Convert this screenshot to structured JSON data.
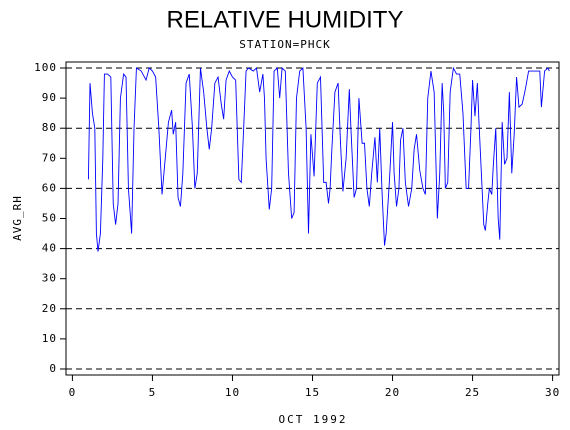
{
  "chart_data": {
    "type": "line",
    "title": "RELATIVE HUMIDITY",
    "subtitle": "STATION=PHCK",
    "x_label": "OCT 1992",
    "y_label": "AVG_RH",
    "xlim": [
      -0.4,
      30.4
    ],
    "ylim": [
      -2,
      102
    ],
    "xticks": [
      0,
      5,
      10,
      15,
      20,
      25,
      30
    ],
    "yticks": [
      0,
      10,
      20,
      30,
      40,
      50,
      60,
      70,
      80,
      90,
      100
    ],
    "ygrid": [
      0,
      20,
      40,
      60,
      80,
      100
    ],
    "series": [
      {
        "color": "#0000ff",
        "x": [
          1.0,
          1.1,
          1.25,
          1.4,
          1.5,
          1.6,
          1.75,
          1.9,
          2.0,
          2.2,
          2.4,
          2.55,
          2.7,
          2.85,
          3.0,
          3.2,
          3.35,
          3.5,
          3.7,
          3.85,
          4.0,
          4.3,
          4.6,
          4.8,
          5.0,
          5.2,
          5.4,
          5.6,
          5.8,
          6.0,
          6.2,
          6.3,
          6.45,
          6.6,
          6.75,
          6.9,
          7.1,
          7.3,
          7.5,
          7.65,
          7.8,
          8.0,
          8.2,
          8.4,
          8.55,
          8.7,
          8.9,
          9.1,
          9.3,
          9.45,
          9.6,
          9.8,
          10.0,
          10.2,
          10.4,
          10.55,
          10.7,
          10.85,
          11.0,
          11.3,
          11.5,
          11.7,
          11.9,
          12.0,
          12.1,
          12.3,
          12.45,
          12.6,
          12.8,
          12.95,
          13.1,
          13.3,
          13.5,
          13.7,
          13.85,
          14.0,
          14.2,
          14.4,
          14.6,
          14.75,
          14.9,
          15.1,
          15.3,
          15.5,
          15.7,
          15.85,
          16.0,
          16.1,
          16.2,
          16.4,
          16.6,
          16.75,
          16.9,
          17.1,
          17.3,
          17.4,
          17.6,
          17.75,
          17.9,
          18.1,
          18.25,
          18.4,
          18.55,
          18.7,
          18.9,
          19.05,
          19.2,
          19.35,
          19.5,
          19.6,
          19.8,
          20.0,
          20.1,
          20.25,
          20.4,
          20.5,
          20.65,
          20.8,
          21.0,
          21.2,
          21.35,
          21.5,
          21.7,
          21.9,
          22.05,
          22.2,
          22.4,
          22.6,
          22.8,
          22.95,
          23.1,
          23.2,
          23.3,
          23.45,
          23.6,
          23.8,
          24.0,
          24.2,
          24.4,
          24.6,
          24.75,
          24.9,
          25.0,
          25.15,
          25.3,
          25.4,
          25.55,
          25.7,
          25.8,
          25.95,
          26.05,
          26.2,
          26.3,
          26.45,
          26.6,
          26.7,
          26.85,
          27.0,
          27.15,
          27.3,
          27.45,
          27.6,
          27.75,
          27.9,
          28.1,
          28.3,
          28.5,
          28.8,
          29.2,
          29.3,
          29.5,
          29.7,
          29.8
        ],
        "values": [
          63,
          95,
          85,
          80,
          45,
          39,
          45,
          70,
          98,
          98,
          97,
          55,
          48,
          55,
          90,
          98,
          97,
          60,
          45,
          80,
          100,
          99,
          96,
          100,
          99,
          97,
          80,
          58,
          70,
          82,
          86,
          78,
          82,
          57,
          54,
          65,
          95,
          98,
          80,
          60,
          65,
          100,
          92,
          80,
          73,
          80,
          95,
          97,
          88,
          83,
          96,
          99,
          97,
          96,
          63,
          62,
          80,
          99,
          100,
          99,
          100,
          92,
          98,
          90,
          70,
          53,
          60,
          99,
          100,
          90,
          100,
          99,
          65,
          50,
          52,
          90,
          99,
          100,
          80,
          45,
          78,
          64,
          95,
          97,
          62,
          62,
          55,
          60,
          72,
          92,
          95,
          75,
          59,
          70,
          93,
          80,
          57,
          60,
          90,
          75,
          75,
          60,
          54,
          65,
          77,
          62,
          80,
          58,
          41,
          45,
          62,
          82,
          65,
          54,
          60,
          76,
          80,
          62,
          54,
          60,
          73,
          78,
          66,
          60,
          58,
          90,
          99,
          92,
          50,
          65,
          95,
          85,
          60,
          62,
          92,
          100,
          98,
          98,
          85,
          60,
          60,
          80,
          96,
          84,
          95,
          82,
          65,
          48,
          46,
          55,
          60,
          58,
          68,
          80,
          50,
          43,
          82,
          68,
          70,
          92,
          65,
          78,
          97,
          87,
          88,
          93,
          99,
          99,
          99,
          87,
          99,
          100,
          99
        ]
      }
    ]
  }
}
